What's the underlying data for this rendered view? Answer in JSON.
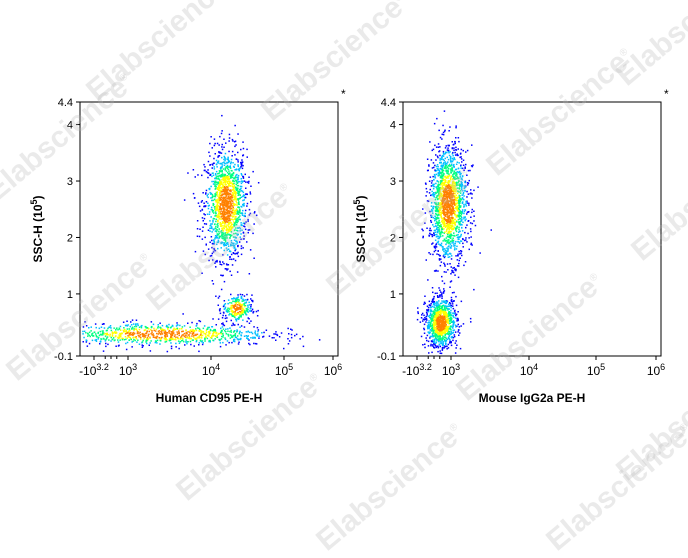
{
  "watermark": {
    "text": "Elabscience",
    "mark": "®"
  },
  "chart_data": [
    {
      "type": "scatter",
      "subtype": "flow-cytometry-density-dot-plot",
      "xlabel": "Human CD95 PE-H",
      "ylabel_main": "SSC-H",
      "ylabel_unit_base": "(10",
      "ylabel_unit_exp": "5",
      "ylabel_unit_close": ")",
      "corner_mark": "*",
      "x_scale": "biexponential",
      "x_ticks": [
        {
          "base": "-10",
          "exp": "3.2"
        },
        {
          "base": "10",
          "exp": "3"
        },
        {
          "base": "10",
          "exp": "4"
        },
        {
          "base": "10",
          "exp": "5"
        },
        {
          "base": "10",
          "exp": "6"
        }
      ],
      "y_ticks": [
        "-0.1",
        "1",
        "2",
        "3",
        "4",
        "4.4"
      ],
      "ylim": [
        -0.1,
        4.4
      ],
      "grid": false,
      "color_scale": [
        "#0000ff",
        "#00bfff",
        "#00ff80",
        "#ffff00",
        "#ff8000",
        "#ff0000"
      ],
      "populations": [
        {
          "name": "",
          "x_center_log10": 4.2,
          "y_center": 2.6,
          "x_spread": 0.14,
          "y_spread": 0.48,
          "weight": 0.55
        },
        {
          "name": "",
          "x_center_log10": 4.35,
          "y_center": 0.75,
          "x_spread": 0.1,
          "y_spread": 0.12,
          "weight": 0.1
        },
        {
          "name": "",
          "x_center_log10": 3.4,
          "y_center": 0.3,
          "x_spread": 0.7,
          "y_spread": 0.1,
          "weight": 0.35
        }
      ]
    },
    {
      "type": "scatter",
      "subtype": "flow-cytometry-density-dot-plot",
      "xlabel": "Mouse IgG2a PE-H",
      "ylabel_main": "SSC-H",
      "ylabel_unit_base": "(10",
      "ylabel_unit_exp": "5",
      "ylabel_unit_close": ")",
      "corner_mark": "*",
      "x_scale": "biexponential",
      "x_ticks": [
        {
          "base": "-10",
          "exp": "3.2"
        },
        {
          "base": "10",
          "exp": "3"
        },
        {
          "base": "10",
          "exp": "4"
        },
        {
          "base": "10",
          "exp": "5"
        },
        {
          "base": "10",
          "exp": "6"
        }
      ],
      "y_ticks": [
        "-0.1",
        "1",
        "2",
        "3",
        "4",
        "4.4"
      ],
      "ylim": [
        -0.1,
        4.4
      ],
      "grid": false,
      "color_scale": [
        "#0000ff",
        "#00bfff",
        "#00ff80",
        "#ffff00",
        "#ff8000",
        "#ff0000"
      ],
      "populations": [
        {
          "name": "",
          "x_center_log10": 2.95,
          "y_center": 2.6,
          "x_spread": 0.13,
          "y_spread": 0.5,
          "weight": 0.62
        },
        {
          "name": "",
          "x_center_log10": 2.85,
          "y_center": 0.5,
          "x_spread": 0.11,
          "y_spread": 0.22,
          "weight": 0.38
        }
      ]
    }
  ]
}
